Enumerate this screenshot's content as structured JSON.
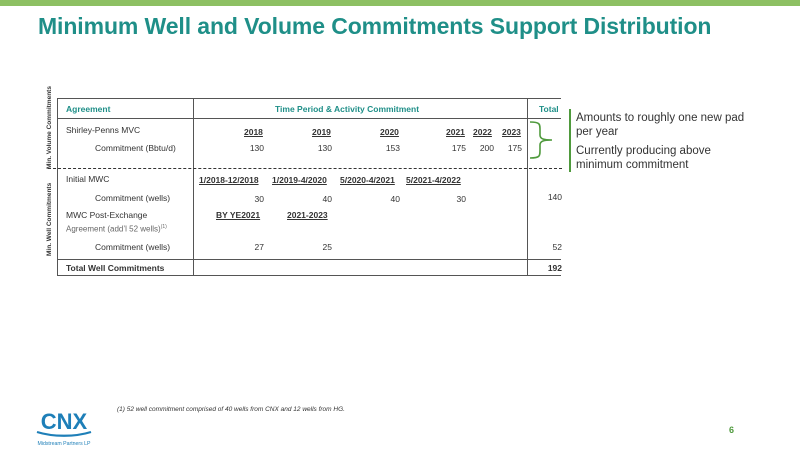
{
  "slide": {
    "title": "Minimum Well and Volume Commitments Support Distribution",
    "page_number": "6",
    "footnote": "(1)   52 well commitment comprised of 40 wells from CNX and 12 wells from HG."
  },
  "logo": {
    "name": "CNX",
    "subtitle": "Midstream Partners LP",
    "color": "#1e7fb8"
  },
  "colors": {
    "title": "#1f8f88",
    "accent_green": "#8dc063",
    "brace_green": "#4f9a3d"
  },
  "side_labels": {
    "volume": "Min. Volume Commitments",
    "well": "Min. Well Commitments"
  },
  "table": {
    "headers": {
      "agreement": "Agreement",
      "period": "Time Period & Activity Commitment",
      "total": "Total"
    },
    "volume": {
      "name": "Shirley-Penns MVC",
      "years": [
        "2018",
        "2019",
        "2020",
        "2021",
        "2022",
        "2023"
      ],
      "row_label": "Commitment (Bbtu/d)",
      "values": [
        "130",
        "130",
        "153",
        "175",
        "200",
        "175"
      ]
    },
    "initial_mwc": {
      "name": "Initial MWC",
      "periods": [
        "1/2018-12/2018",
        "1/2019-4/2020",
        "5/2020-4/2021",
        "5/2021-4/2022"
      ],
      "row_label": "Commitment (wells)",
      "values": [
        "30",
        "40",
        "40",
        "30"
      ],
      "total": "140"
    },
    "post_exchange": {
      "name": "MWC Post-Exchange",
      "sub": "Agreement (add’l 52 wells)",
      "sup": "(1)",
      "periods": [
        "BY YE2021",
        "2021-2023"
      ],
      "row_label": "Commitment (wells)",
      "values": [
        "27",
        "25"
      ],
      "total": "52"
    },
    "total_row": {
      "label": "Total Well Commitments",
      "value": "192"
    }
  },
  "notes": {
    "first": "Amounts to roughly one new pad per year",
    "second": "Currently producing above minimum commitment"
  }
}
